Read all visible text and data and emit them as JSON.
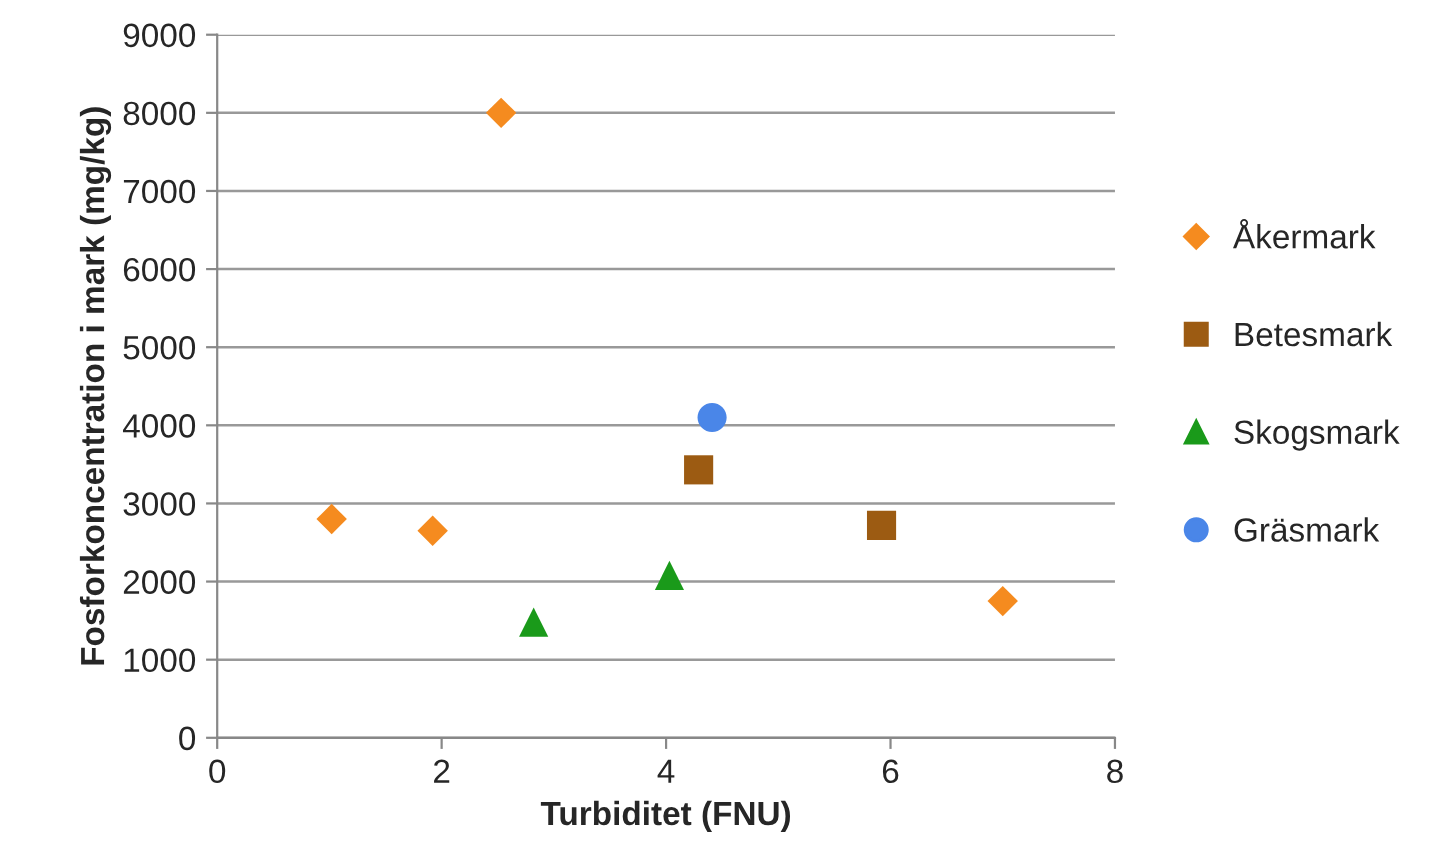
{
  "chart_data": {
    "type": "scatter",
    "xlabel": "Turbiditet (FNU)",
    "ylabel": "Fosforkoncentration i mark (mg/kg)",
    "xlim": [
      0,
      8
    ],
    "xticks": [
      0,
      2,
      4,
      6,
      8
    ],
    "ylim": [
      0,
      9000
    ],
    "yticks": [
      0,
      1000,
      2000,
      3000,
      4000,
      5000,
      6000,
      7000,
      8000,
      9000
    ],
    "grid": "y",
    "legend": "right",
    "series": [
      {
        "name": "Åkermark",
        "color": "#f58b1f",
        "marker": "diamond",
        "x": [
          1.02,
          1.92,
          2.53,
          7.0
        ],
        "values": [
          2800,
          2650,
          8000,
          1750
        ]
      },
      {
        "name": "Betesmark",
        "color": "#9c5b12",
        "marker": "square",
        "x": [
          4.29,
          5.92
        ],
        "values": [
          3430,
          2720
        ]
      },
      {
        "name": "Skogsmark",
        "color": "#1a9a1a",
        "marker": "triangle",
        "x": [
          2.82,
          4.03
        ],
        "values": [
          1480,
          2080
        ]
      },
      {
        "name": "Gräsmark",
        "color": "#4a86e8",
        "marker": "circle",
        "x": [
          4.41
        ],
        "values": [
          4100
        ]
      }
    ]
  }
}
